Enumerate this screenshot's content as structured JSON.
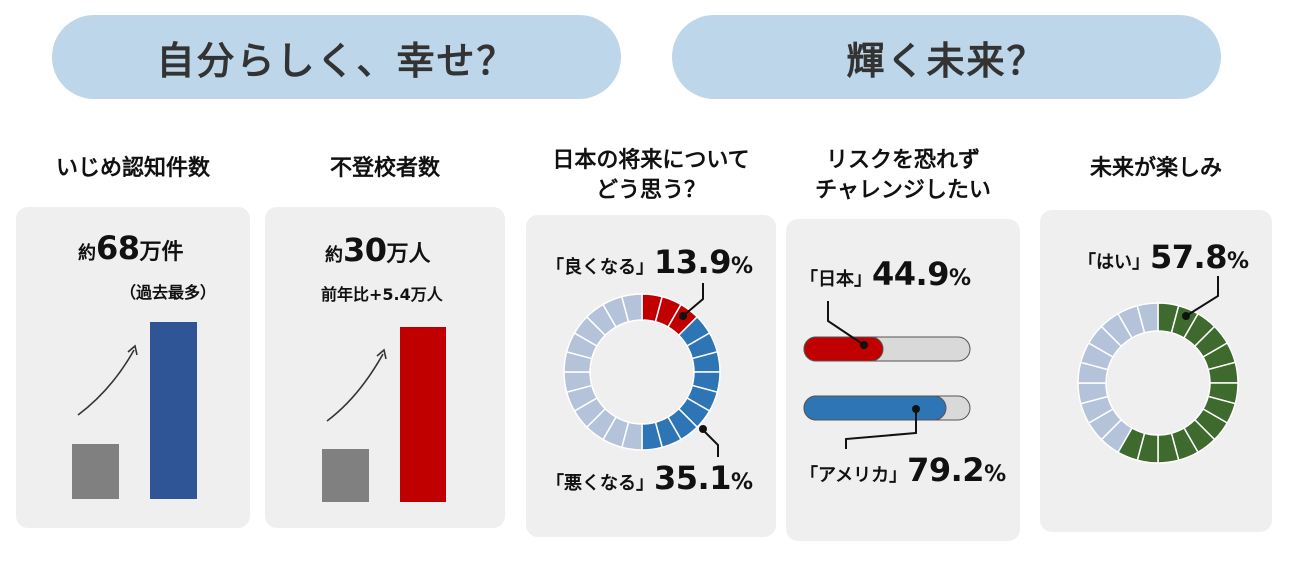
{
  "header": {
    "left_title": "自分らしく、幸せ？",
    "right_title": "輝く未来？"
  },
  "colors": {
    "pill": "#bdd6ea",
    "card": "#efefef",
    "gray_bar": "#808080",
    "navy_bar": "#2f5597",
    "red": "#c00000",
    "blue": "#2e75b6",
    "light_segment": "#b4c3d9",
    "green": "#3f6a2e",
    "track": "#d9d9d9"
  },
  "panels": {
    "bullying": {
      "title": "いじめ認知件数",
      "prefix": "約",
      "number": "68",
      "unit": "万件",
      "note": "（過去最多）"
    },
    "absence": {
      "title": "不登校者数",
      "prefix": "約",
      "number": "30",
      "unit": "万人",
      "note": "前年比+5.4万人"
    },
    "future_japan": {
      "title_line1": "日本の将来について",
      "title_line2": "どう思う？",
      "good_label": "「良くなる」",
      "good_value": "13.9",
      "bad_label": "「悪くなる」",
      "bad_value": "35.1",
      "pct_sign": "%"
    },
    "risk": {
      "title_line1": "リスクを恐れず",
      "title_line2": "チャレンジしたい",
      "japan_label": "「日本」",
      "japan_value": "44.9",
      "usa_label": "「アメリカ」",
      "usa_value": "79.2",
      "pct_sign": "%"
    },
    "looking_forward": {
      "title": "未来が楽しみ",
      "yes_label": "「はい」",
      "yes_value": "57.8",
      "pct_sign": "%"
    }
  },
  "chart_data": [
    {
      "type": "bar",
      "title": "いじめ認知件数",
      "categories": [
        "",
        ""
      ],
      "values": [
        0.36,
        1.0
      ],
      "colors": [
        "#808080",
        "#2f5597"
      ],
      "annotation": "約68万件（過去最多）"
    },
    {
      "type": "bar",
      "title": "不登校者数",
      "categories": [
        "",
        ""
      ],
      "values": [
        0.35,
        1.0
      ],
      "colors": [
        "#808080",
        "#c00000"
      ],
      "annotation": "約30万人 前年比+5.4万人"
    },
    {
      "type": "pie",
      "title": "日本の将来についてどう思う？",
      "donut": true,
      "segments": 24,
      "series": [
        {
          "name": "良くなる",
          "value": 13.9,
          "color": "#c00000"
        },
        {
          "name": "悪くなる",
          "value": 35.1,
          "color": "#2e75b6"
        },
        {
          "name": "",
          "value": 51.0,
          "color": "#b4c3d9"
        }
      ]
    },
    {
      "type": "bar",
      "orientation": "horizontal",
      "title": "リスクを恐れずチャレンジしたい",
      "categories": [
        "日本",
        "アメリカ"
      ],
      "values": [
        44.9,
        79.2
      ],
      "colors": [
        "#c00000",
        "#2e75b6"
      ],
      "xlim": [
        0,
        100
      ]
    },
    {
      "type": "pie",
      "title": "未来が楽しみ",
      "donut": true,
      "segments": 24,
      "series": [
        {
          "name": "はい",
          "value": 57.8,
          "color": "#3f6a2e"
        },
        {
          "name": "",
          "value": 42.2,
          "color": "#b4c3d9"
        }
      ]
    }
  ]
}
